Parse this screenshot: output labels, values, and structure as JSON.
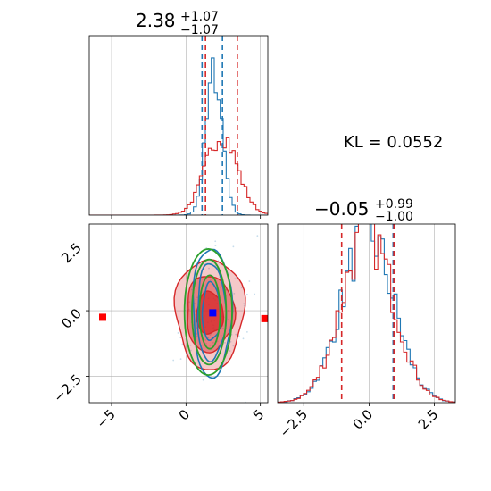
{
  "chart_data": {
    "type": "corner",
    "colors": {
      "series_a": "#1f77b4",
      "series_b": "#d62728",
      "series_c": "#2ca02c",
      "marker_truth": "#0000ff",
      "marker_outlier": "#ff0000",
      "grid": "#b0b0b0"
    },
    "annotation": "KL = 0.0552",
    "panels": [
      {
        "id": "hist_param1",
        "kind": "histogram",
        "title": {
          "main": "2.38",
          "upper": "+1.07",
          "lower": "−1.07"
        },
        "xlim": [
          -6.5,
          5.5
        ],
        "xticks": [
          -5,
          0,
          5
        ],
        "xticklabels": [
          "−5",
          "0",
          "5"
        ],
        "grid": true,
        "series": [
          {
            "color": "series_a",
            "mean": 1.9,
            "sd": 0.55,
            "scale": 0.8
          },
          {
            "color": "series_b",
            "mean": 2.38,
            "sd": 1.07,
            "scale": 0.45
          }
        ],
        "vlines": [
          {
            "x": 1.31,
            "color": "series_b"
          },
          {
            "x": 1.08,
            "color": "series_a"
          },
          {
            "x": 2.45,
            "color": "series_a"
          },
          {
            "x": 3.45,
            "color": "series_b"
          }
        ]
      },
      {
        "id": "hist_param2",
        "kind": "histogram",
        "title": {
          "main": "−0.05",
          "upper": "+0.99",
          "lower": "−1.00"
        },
        "xlim": [
          -3.5,
          3.3
        ],
        "xticks": [
          -2.5,
          0.0,
          2.5
        ],
        "xticklabels": [
          "−2.5",
          "0.0",
          "2.5"
        ],
        "grid": true,
        "series": [
          {
            "color": "series_a",
            "mean": -0.05,
            "sd": 0.99,
            "scale": 0.95
          },
          {
            "color": "series_b",
            "mean": -0.05,
            "sd": 0.99,
            "scale": 0.95
          }
        ],
        "vlines": [
          {
            "x": -1.05,
            "color": "series_b"
          },
          {
            "x": 0.92,
            "color": "series_a"
          },
          {
            "x": 0.95,
            "color": "series_b"
          }
        ]
      },
      {
        "id": "scatter_2d",
        "kind": "contour",
        "xlim": [
          -6.5,
          5.5
        ],
        "ylim": [
          -3.5,
          3.3
        ],
        "xticks": [
          -5,
          0,
          5
        ],
        "xticklabels": [
          "−5",
          "0",
          "5"
        ],
        "yticks": [
          -2.5,
          0.0,
          2.5
        ],
        "yticklabels": [
          "−2.5",
          "0.0",
          "2.5"
        ],
        "grid": true,
        "red_filled_levels": [
          {
            "cx": 1.6,
            "cy": -0.1,
            "rx": 2.3,
            "ry": 2.1,
            "opacity": 0.25
          },
          {
            "cx": 1.6,
            "cy": -0.1,
            "rx": 1.6,
            "ry": 1.45,
            "opacity": 0.45
          },
          {
            "cx": 1.6,
            "cy": -0.1,
            "rx": 0.9,
            "ry": 0.8,
            "opacity": 0.75
          }
        ],
        "blue_contours": [
          {
            "cx": 1.75,
            "cy": -0.05,
            "rx": 1.3,
            "ry": 2.45
          },
          {
            "cx": 1.7,
            "cy": -0.05,
            "rx": 0.95,
            "ry": 1.85
          },
          {
            "cx": 1.7,
            "cy": -0.05,
            "rx": 0.6,
            "ry": 1.1
          }
        ],
        "green_contours": [
          {
            "cx": 1.5,
            "cy": -0.05,
            "rx": 1.6,
            "ry": 2.4
          },
          {
            "cx": 1.55,
            "cy": -0.05,
            "rx": 1.15,
            "ry": 2.0
          },
          {
            "cx": 1.6,
            "cy": -0.05,
            "rx": 0.7,
            "ry": 1.4
          }
        ],
        "markers": [
          {
            "x": 1.8,
            "y": -0.08,
            "color": "marker_truth"
          },
          {
            "x": -5.6,
            "y": -0.25,
            "color": "marker_outlier"
          },
          {
            "x": 5.3,
            "y": -0.3,
            "color": "marker_outlier"
          }
        ]
      }
    ]
  }
}
